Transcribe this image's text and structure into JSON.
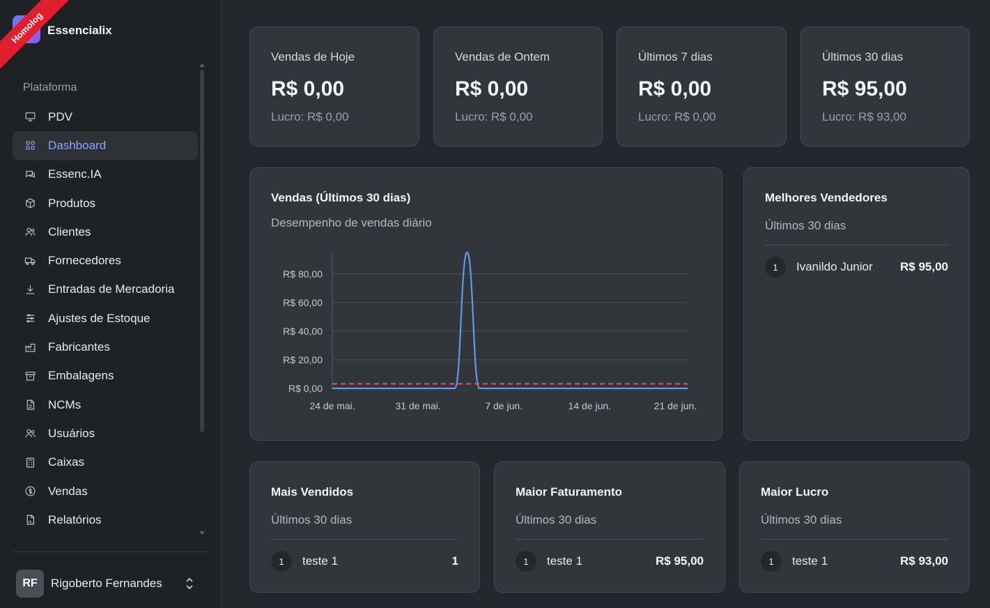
{
  "sidebar": {
    "badge": "Homolog",
    "app_name": "Essencialix",
    "group_label": "Plataforma",
    "items": [
      {
        "label": "PDV",
        "icon": "monitor-icon"
      },
      {
        "label": "Dashboard",
        "icon": "grid-icon"
      },
      {
        "label": "Essenc.IA",
        "icon": "chat-icon"
      },
      {
        "label": "Produtos",
        "icon": "box-icon"
      },
      {
        "label": "Clientes",
        "icon": "users-icon"
      },
      {
        "label": "Fornecedores",
        "icon": "truck-icon"
      },
      {
        "label": "Entradas de Mercadoria",
        "icon": "download-icon"
      },
      {
        "label": "Ajustes de Estoque",
        "icon": "sliders-icon"
      },
      {
        "label": "Fabricantes",
        "icon": "factory-icon"
      },
      {
        "label": "Embalagens",
        "icon": "archive-icon"
      },
      {
        "label": "NCMs",
        "icon": "file-icon"
      },
      {
        "label": "Usuários",
        "icon": "users-icon"
      },
      {
        "label": "Caixas",
        "icon": "calculator-icon"
      },
      {
        "label": "Vendas",
        "icon": "dollar-icon"
      },
      {
        "label": "Relatórios",
        "icon": "report-icon"
      }
    ],
    "active_item": "Dashboard",
    "user": {
      "initials": "RF",
      "name": "Rigoberto Fernandes"
    }
  },
  "stats": [
    {
      "title": "Vendas de Hoje",
      "value": "R$ 0,00",
      "profit": "Lucro: R$ 0,00"
    },
    {
      "title": "Vendas de Ontem",
      "value": "R$ 0,00",
      "profit": "Lucro: R$ 0,00"
    },
    {
      "title": "Últimos 7 dias",
      "value": "R$ 0,00",
      "profit": "Lucro: R$ 0,00"
    },
    {
      "title": "Últimos 30 dias",
      "value": "R$ 95,00",
      "profit": "Lucro: R$ 93,00"
    }
  ],
  "sales_chart": {
    "title": "Vendas (Últimos 30 dias)",
    "subtitle": "Desempenho de vendas diário"
  },
  "chart_data": {
    "type": "line",
    "title": "Vendas (Últimos 30 dias)",
    "subtitle": "Desempenho de vendas diário",
    "x_tick_labels": [
      "24 de mai.",
      "31 de mai.",
      "7 de jun.",
      "14 de jun.",
      "21 de jun."
    ],
    "y_tick_labels": [
      "R$ 0,00",
      "R$ 20,00",
      "R$ 40,00",
      "R$ 60,00",
      "R$ 80,00"
    ],
    "ylim": [
      0,
      95
    ],
    "x_days": [
      0,
      29
    ],
    "grid": true,
    "series": [
      {
        "color": "#5b9cf0",
        "style": "solid",
        "points": [
          [
            0,
            0
          ],
          [
            10,
            0
          ],
          [
            11,
            95
          ],
          [
            12,
            0
          ],
          [
            29,
            0
          ]
        ]
      },
      {
        "color": "#e8555b",
        "style": "dashed",
        "points": [
          [
            0,
            3.17
          ],
          [
            29,
            3.17
          ]
        ]
      }
    ]
  },
  "top_sellers": {
    "title": "Melhores Vendedores",
    "subtitle": "Últimos 30 dias",
    "rows": [
      {
        "rank": "1",
        "name": "Ivanildo Junior",
        "value": "R$ 95,00"
      }
    ]
  },
  "bottom_cards": [
    {
      "title": "Mais Vendidos",
      "subtitle": "Últimos 30 dias",
      "rows": [
        {
          "rank": "1",
          "name": "teste 1",
          "value": "1"
        }
      ]
    },
    {
      "title": "Maior Faturamento",
      "subtitle": "Últimos 30 dias",
      "rows": [
        {
          "rank": "1",
          "name": "teste 1",
          "value": "R$ 95,00"
        }
      ]
    },
    {
      "title": "Maior Lucro",
      "subtitle": "Últimos 30 dias",
      "rows": [
        {
          "rank": "1",
          "name": "teste 1",
          "value": "R$ 93,00"
        }
      ]
    }
  ],
  "colors": {
    "accent": "#8fa2ff",
    "ribbon": "#e11d2e",
    "line": "#5b9cf0",
    "dashed": "#e8555b"
  }
}
